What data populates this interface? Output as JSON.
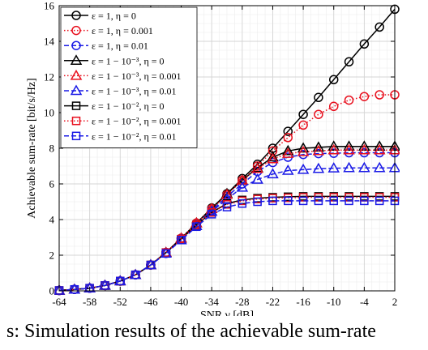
{
  "chart_data": {
    "type": "line",
    "title": "",
    "xlabel": "SNR γ [dB]",
    "ylabel": "Achievable sum-rate [bit/s/Hz]",
    "xlim": [
      -64,
      2
    ],
    "ylim": [
      0,
      16
    ],
    "xticks": [
      -64,
      -58,
      -52,
      -46,
      -40,
      -34,
      -28,
      -22,
      -16,
      -10,
      -4,
      2
    ],
    "yticks": [
      0,
      2,
      4,
      6,
      8,
      10,
      12,
      14,
      16
    ],
    "x": [
      -64,
      -61,
      -58,
      -55,
      -52,
      -49,
      -46,
      -43,
      -40,
      -37,
      -34,
      -31,
      -28,
      -25,
      -22,
      -19,
      -16,
      -13,
      -10,
      -7,
      -4,
      -1,
      2
    ],
    "grid": true,
    "minor_grid": true,
    "legend_position": "top-left",
    "series": [
      {
        "name": "ε = 1, η = 0",
        "color": "#000000",
        "marker": "circle",
        "dash": "solid",
        "values": [
          0.02,
          0.08,
          0.15,
          0.3,
          0.55,
          0.9,
          1.45,
          2.15,
          2.95,
          3.8,
          4.65,
          5.45,
          6.3,
          7.1,
          8.0,
          8.95,
          9.9,
          10.85,
          11.85,
          12.85,
          13.85,
          14.8,
          15.8
        ]
      },
      {
        "name": "ε = 1, η = 0.001",
        "color": "#e8101e",
        "marker": "circle",
        "dash": "dotted",
        "values": [
          0.02,
          0.08,
          0.15,
          0.3,
          0.55,
          0.9,
          1.45,
          2.15,
          2.95,
          3.8,
          4.6,
          5.4,
          6.2,
          7.0,
          7.85,
          8.6,
          9.3,
          9.9,
          10.35,
          10.7,
          10.9,
          11.0,
          11.0
        ]
      },
      {
        "name": "ε = 1, η = 0.01",
        "color": "#1a1ae6",
        "marker": "circle",
        "dash": "dashed",
        "values": [
          0.02,
          0.08,
          0.15,
          0.3,
          0.55,
          0.9,
          1.45,
          2.1,
          2.9,
          3.7,
          4.5,
          5.3,
          6.0,
          6.7,
          7.2,
          7.5,
          7.65,
          7.7,
          7.72,
          7.75,
          7.75,
          7.75,
          7.75
        ]
      },
      {
        "name": "ε = 1 − 10⁻³, η = 0",
        "color": "#000000",
        "marker": "triangle",
        "dash": "solid",
        "values": [
          0.02,
          0.08,
          0.15,
          0.3,
          0.55,
          0.9,
          1.45,
          2.15,
          2.95,
          3.8,
          4.6,
          5.45,
          6.2,
          6.9,
          7.5,
          7.85,
          8.0,
          8.05,
          8.1,
          8.1,
          8.1,
          8.1,
          8.1
        ]
      },
      {
        "name": "ε = 1 − 10⁻³, η = 0.001",
        "color": "#e8101e",
        "marker": "triangle",
        "dash": "dotted",
        "values": [
          0.02,
          0.08,
          0.15,
          0.3,
          0.55,
          0.9,
          1.45,
          2.15,
          2.95,
          3.8,
          4.6,
          5.4,
          6.2,
          6.85,
          7.4,
          7.7,
          7.8,
          7.85,
          7.9,
          7.9,
          7.9,
          7.9,
          7.9
        ]
      },
      {
        "name": "ε = 1 − 10⁻³, η = 0.01",
        "color": "#1a1ae6",
        "marker": "triangle",
        "dash": "dashed",
        "values": [
          0.02,
          0.08,
          0.15,
          0.3,
          0.55,
          0.9,
          1.45,
          2.1,
          2.85,
          3.65,
          4.45,
          5.15,
          5.8,
          6.25,
          6.55,
          6.75,
          6.8,
          6.85,
          6.88,
          6.9,
          6.9,
          6.9,
          6.9
        ]
      },
      {
        "name": "ε = 1 − 10⁻², η = 0",
        "color": "#000000",
        "marker": "square",
        "dash": "solid",
        "values": [
          0.02,
          0.08,
          0.15,
          0.3,
          0.55,
          0.9,
          1.45,
          2.15,
          2.9,
          3.7,
          4.4,
          4.9,
          5.1,
          5.2,
          5.25,
          5.28,
          5.3,
          5.3,
          5.3,
          5.3,
          5.3,
          5.3,
          5.3
        ]
      },
      {
        "name": "ε = 1 − 10⁻², η = 0.001",
        "color": "#e8101e",
        "marker": "square",
        "dash": "dotted",
        "values": [
          0.02,
          0.08,
          0.15,
          0.3,
          0.55,
          0.9,
          1.45,
          2.15,
          2.9,
          3.7,
          4.4,
          4.85,
          5.05,
          5.15,
          5.2,
          5.22,
          5.25,
          5.25,
          5.25,
          5.25,
          5.25,
          5.25,
          5.25
        ]
      },
      {
        "name": "ε = 1 − 10⁻², η = 0.01",
        "color": "#1a1ae6",
        "marker": "square",
        "dash": "dashed",
        "values": [
          0.02,
          0.08,
          0.15,
          0.3,
          0.55,
          0.9,
          1.45,
          2.1,
          2.85,
          3.6,
          4.3,
          4.7,
          4.9,
          5.0,
          5.05,
          5.05,
          5.05,
          5.05,
          5.05,
          5.05,
          5.05,
          5.05,
          5.05
        ]
      }
    ]
  },
  "caption_fragment": "s: Simulation results of the achievable sum-rate"
}
